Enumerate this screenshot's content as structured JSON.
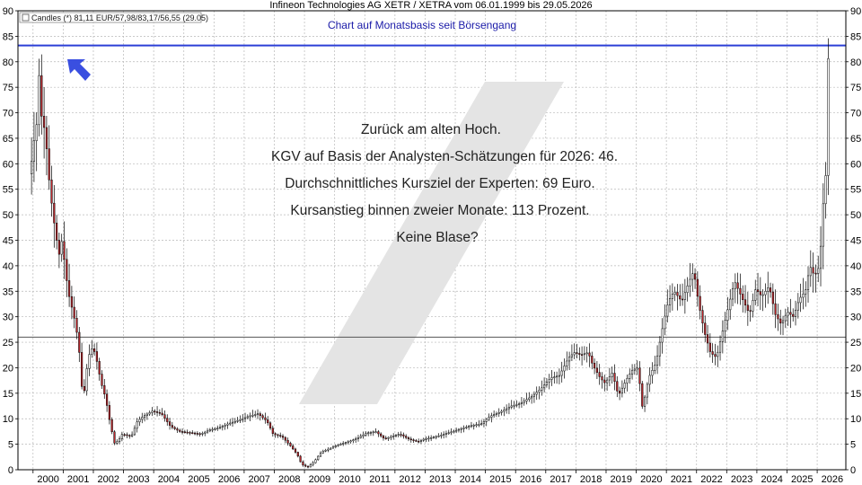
{
  "chart_data": {
    "type": "candlestick",
    "title": "Infineon Technologies AG XETR / XETRA vom 06.01.1999 bis 29.05.2026",
    "subtitle": "Chart auf Monatsbasis seit Börsengang",
    "legend": "Candles (*) 81,11 EUR/57,98/83,17/56,55 (29.05)",
    "annotations": [
      "Zurück am alten Hoch.",
      "KGV auf Basis der Analysten-Schätzungen für 2026: 46.",
      "Durchschnittliches Kursziel der Experten: 69 Euro.",
      "Kursanstieg binnen zweier Monate: 113 Prozent.",
      "Keine Blase?"
    ],
    "ylim": [
      0,
      90
    ],
    "y_ticks": [
      0,
      5,
      10,
      15,
      20,
      25,
      30,
      35,
      40,
      45,
      50,
      55,
      60,
      65,
      70,
      75,
      80,
      85,
      90
    ],
    "x_ticks": [
      "2000",
      "2001",
      "2002",
      "2003",
      "2004",
      "2005",
      "2006",
      "2007",
      "2008",
      "2009",
      "2010",
      "2011",
      "2012",
      "2013",
      "2014",
      "2015",
      "2016",
      "2017",
      "2018",
      "2019",
      "2020",
      "2021",
      "2022",
      "2023",
      "2024",
      "2025",
      "2026"
    ],
    "xlim": [
      1999.5,
      2026.95
    ],
    "grid": true,
    "horizontal_lines": [
      {
        "y": 83.2,
        "color": "#2b3fd6"
      },
      {
        "y": 26.0,
        "color": "#555555"
      }
    ],
    "colors": {
      "up": "#ffffff",
      "down": "#c0282d",
      "wick": "#000000",
      "arrow": "#3a4fe0"
    },
    "anchor_prices": [
      [
        1999.95,
        58
      ],
      [
        2000.05,
        64
      ],
      [
        2000.15,
        66
      ],
      [
        2000.22,
        80
      ],
      [
        2000.3,
        70
      ],
      [
        2000.45,
        66
      ],
      [
        2000.6,
        55
      ],
      [
        2000.75,
        48
      ],
      [
        2000.9,
        42
      ],
      [
        2001.0,
        45
      ],
      [
        2001.2,
        35
      ],
      [
        2001.4,
        30
      ],
      [
        2001.55,
        25
      ],
      [
        2001.7,
        13
      ],
      [
        2001.8,
        19
      ],
      [
        2001.95,
        24
      ],
      [
        2002.1,
        23
      ],
      [
        2002.3,
        17
      ],
      [
        2002.45,
        14
      ],
      [
        2002.6,
        9
      ],
      [
        2002.75,
        5
      ],
      [
        2002.9,
        6
      ],
      [
        2003.0,
        7
      ],
      [
        2003.3,
        6.5
      ],
      [
        2003.5,
        9.5
      ],
      [
        2003.7,
        10.5
      ],
      [
        2004.0,
        11.5
      ],
      [
        2004.3,
        11
      ],
      [
        2004.6,
        8.5
      ],
      [
        2004.9,
        7.5
      ],
      [
        2005.2,
        7.3
      ],
      [
        2005.6,
        7.0
      ],
      [
        2005.9,
        7.8
      ],
      [
        2006.2,
        8.2
      ],
      [
        2006.5,
        9.0
      ],
      [
        2006.9,
        9.8
      ],
      [
        2007.2,
        10.5
      ],
      [
        2007.5,
        11
      ],
      [
        2007.8,
        9.5
      ],
      [
        2008.0,
        7
      ],
      [
        2008.3,
        6.5
      ],
      [
        2008.6,
        4.5
      ],
      [
        2008.8,
        3.0
      ],
      [
        2008.95,
        1.0
      ],
      [
        2009.15,
        0.5
      ],
      [
        2009.35,
        1.5
      ],
      [
        2009.6,
        3.5
      ],
      [
        2009.9,
        4.2
      ],
      [
        2010.2,
        5.0
      ],
      [
        2010.5,
        5.5
      ],
      [
        2010.8,
        6.2
      ],
      [
        2011.1,
        7.2
      ],
      [
        2011.4,
        7.5
      ],
      [
        2011.7,
        6.0
      ],
      [
        2011.9,
        6.5
      ],
      [
        2012.2,
        7.0
      ],
      [
        2012.5,
        6.0
      ],
      [
        2012.8,
        5.5
      ],
      [
        2013.0,
        6.0
      ],
      [
        2013.4,
        6.5
      ],
      [
        2013.8,
        7.2
      ],
      [
        2014.2,
        8.0
      ],
      [
        2014.6,
        8.7
      ],
      [
        2014.9,
        9.0
      ],
      [
        2015.2,
        10.5
      ],
      [
        2015.6,
        11.5
      ],
      [
        2015.9,
        12.5
      ],
      [
        2016.2,
        13
      ],
      [
        2016.6,
        14.5
      ],
      [
        2016.9,
        16
      ],
      [
        2017.2,
        18.0
      ],
      [
        2017.5,
        18.5
      ],
      [
        2017.8,
        22.0
      ],
      [
        2018.0,
        23.0
      ],
      [
        2018.2,
        22.5
      ],
      [
        2018.45,
        23.0
      ],
      [
        2018.6,
        20.5
      ],
      [
        2018.85,
        18.0
      ],
      [
        2019.0,
        17.0
      ],
      [
        2019.25,
        19.0
      ],
      [
        2019.45,
        14.5
      ],
      [
        2019.7,
        17.5
      ],
      [
        2019.9,
        19.5
      ],
      [
        2020.1,
        20.0
      ],
      [
        2020.25,
        12.0
      ],
      [
        2020.45,
        18.0
      ],
      [
        2020.7,
        21.0
      ],
      [
        2020.95,
        29.0
      ],
      [
        2021.1,
        33.0
      ],
      [
        2021.3,
        35.0
      ],
      [
        2021.55,
        33.0
      ],
      [
        2021.8,
        37.0
      ],
      [
        2021.95,
        39.0
      ],
      [
        2022.1,
        33.0
      ],
      [
        2022.3,
        27.0
      ],
      [
        2022.5,
        23.0
      ],
      [
        2022.7,
        22.0
      ],
      [
        2022.9,
        27.0
      ],
      [
        2023.1,
        32.0
      ],
      [
        2023.3,
        37.0
      ],
      [
        2023.45,
        35.0
      ],
      [
        2023.6,
        33.0
      ],
      [
        2023.8,
        30.5
      ],
      [
        2024.0,
        35.5
      ],
      [
        2024.2,
        34.0
      ],
      [
        2024.45,
        36.0
      ],
      [
        2024.65,
        30.5
      ],
      [
        2024.85,
        28.5
      ],
      [
        2025.05,
        31.0
      ],
      [
        2025.25,
        30.0
      ],
      [
        2025.45,
        33.5
      ],
      [
        2025.65,
        35.0
      ],
      [
        2025.8,
        40.0
      ],
      [
        2025.95,
        38.0
      ],
      [
        2026.12,
        40.0
      ],
      [
        2026.25,
        53.0
      ],
      [
        2026.33,
        58.0
      ],
      [
        2026.41,
        81.1
      ]
    ]
  }
}
